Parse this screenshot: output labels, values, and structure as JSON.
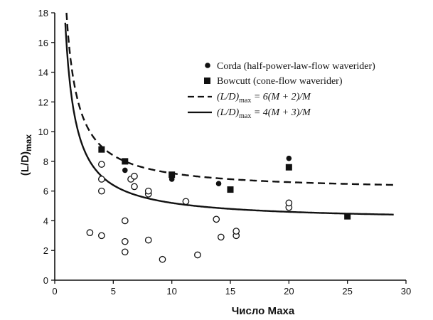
{
  "chart_data": {
    "type": "scatter",
    "xlabel": "Число Маха",
    "ylabel_main": "(L/D)",
    "ylabel_sub": "max",
    "xlim": [
      0,
      30
    ],
    "ylim": [
      0,
      18
    ],
    "x_ticks": [
      "0",
      "5",
      "10",
      "15",
      "20",
      "25",
      "30"
    ],
    "y_ticks": [
      "0",
      "2",
      "4",
      "6",
      "8",
      "10",
      "12",
      "14",
      "16",
      "18"
    ],
    "grid": false,
    "legend_position": "top-right",
    "legend": {
      "corda": "Corda (half-power-law-flow waverider)",
      "bowcutt": "Bowcutt (cone-flow waverider)",
      "dashed_lhs": "(L/D)",
      "dashed_sub": "max",
      "dashed_rhs": " = 6(M + 2)/M",
      "solid_lhs": "(L/D)",
      "solid_sub": "max",
      "solid_rhs": " = 4(M + 3)/M"
    },
    "curves": [
      {
        "style": "dashed",
        "formula": "6(M+2)/M"
      },
      {
        "style": "solid",
        "formula": "4(M+3)/M"
      }
    ],
    "series": [
      {
        "name": "Corda (half-power-law-flow waverider)",
        "marker": "filled-circle",
        "points": [
          [
            4,
            8.8
          ],
          [
            6,
            7.4
          ],
          [
            10,
            6.8
          ],
          [
            14,
            6.5
          ],
          [
            20,
            8.2
          ]
        ]
      },
      {
        "name": "Bowcutt (cone-flow waverider)",
        "marker": "filled-square",
        "points": [
          [
            4,
            8.8
          ],
          [
            6,
            8.0
          ],
          [
            10,
            7.1
          ],
          [
            15,
            6.1
          ],
          [
            20,
            7.6
          ],
          [
            25,
            4.3
          ]
        ]
      },
      {
        "marker": "open-circle",
        "points": [
          [
            3,
            3.2
          ],
          [
            4,
            3.0
          ],
          [
            4,
            6.0
          ],
          [
            4,
            6.8
          ],
          [
            4,
            7.8
          ],
          [
            6,
            1.9
          ],
          [
            6,
            2.6
          ],
          [
            6,
            4.0
          ],
          [
            6.5,
            6.8
          ],
          [
            6.8,
            6.3
          ],
          [
            6.8,
            7.0
          ],
          [
            8,
            2.7
          ],
          [
            8,
            5.8
          ],
          [
            8,
            6.0
          ],
          [
            9.2,
            1.4
          ],
          [
            11.2,
            5.3
          ],
          [
            12.2,
            1.7
          ],
          [
            13.8,
            4.1
          ],
          [
            14.2,
            2.9
          ],
          [
            15.5,
            3.0
          ],
          [
            15.5,
            3.3
          ],
          [
            20,
            4.9
          ],
          [
            20,
            5.2
          ]
        ]
      }
    ]
  }
}
